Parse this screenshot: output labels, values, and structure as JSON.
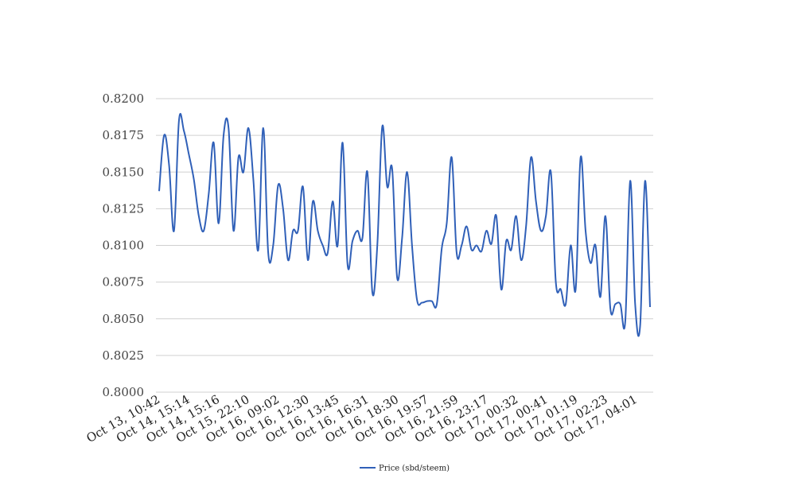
{
  "chart_data": {
    "type": "line",
    "title": "",
    "xlabel": "",
    "ylabel": "",
    "ylim": [
      0.8,
      0.82
    ],
    "yticks": [
      "0.8000",
      "0.8025",
      "0.8050",
      "0.8075",
      "0.8100",
      "0.8125",
      "0.8150",
      "0.8175",
      "0.8200"
    ],
    "xtick_labels": [
      "Oct 13, 10:42",
      "Oct 14, 15:14",
      "Oct 14, 15:16",
      "Oct 15, 22:10",
      "Oct 16, 09:02",
      "Oct 16, 12:30",
      "Oct 16, 13:45",
      "Oct 16, 16:31",
      "Oct 16, 18:30",
      "Oct 16, 19:57",
      "Oct 16, 21:59",
      "Oct 16, 23:17",
      "Oct 17, 00:32",
      "Oct 17, 00:41",
      "Oct 17, 01:19",
      "Oct 17, 02:23",
      "Oct 17, 04:01"
    ],
    "grid": true,
    "legend_position": "bottom",
    "series": [
      {
        "name": "Price (sbd/steem)",
        "color": "#3060b8",
        "values": [
          0.8137,
          0.8175,
          0.8155,
          0.811,
          0.8185,
          0.8178,
          0.8162,
          0.8145,
          0.812,
          0.811,
          0.8135,
          0.817,
          0.8115,
          0.8175,
          0.818,
          0.811,
          0.816,
          0.815,
          0.818,
          0.8145,
          0.8097,
          0.818,
          0.8095,
          0.81,
          0.8141,
          0.8125,
          0.809,
          0.811,
          0.811,
          0.814,
          0.809,
          0.813,
          0.811,
          0.81,
          0.8095,
          0.813,
          0.81,
          0.817,
          0.8087,
          0.8103,
          0.811,
          0.8105,
          0.815,
          0.8068,
          0.81,
          0.8181,
          0.814,
          0.8152,
          0.8078,
          0.8105,
          0.815,
          0.81,
          0.8063,
          0.8061,
          0.8062,
          0.8062,
          0.806,
          0.8098,
          0.8115,
          0.816,
          0.8095,
          0.81,
          0.8113,
          0.8097,
          0.81,
          0.8096,
          0.811,
          0.8101,
          0.812,
          0.807,
          0.8103,
          0.8097,
          0.812,
          0.809,
          0.8113,
          0.816,
          0.813,
          0.811,
          0.812,
          0.815,
          0.8075,
          0.807,
          0.806,
          0.81,
          0.807,
          0.816,
          0.811,
          0.8088,
          0.81,
          0.8065,
          0.812,
          0.8057,
          0.806,
          0.806,
          0.8048,
          0.8144,
          0.806,
          0.8045,
          0.8144,
          0.8058
        ]
      }
    ]
  }
}
